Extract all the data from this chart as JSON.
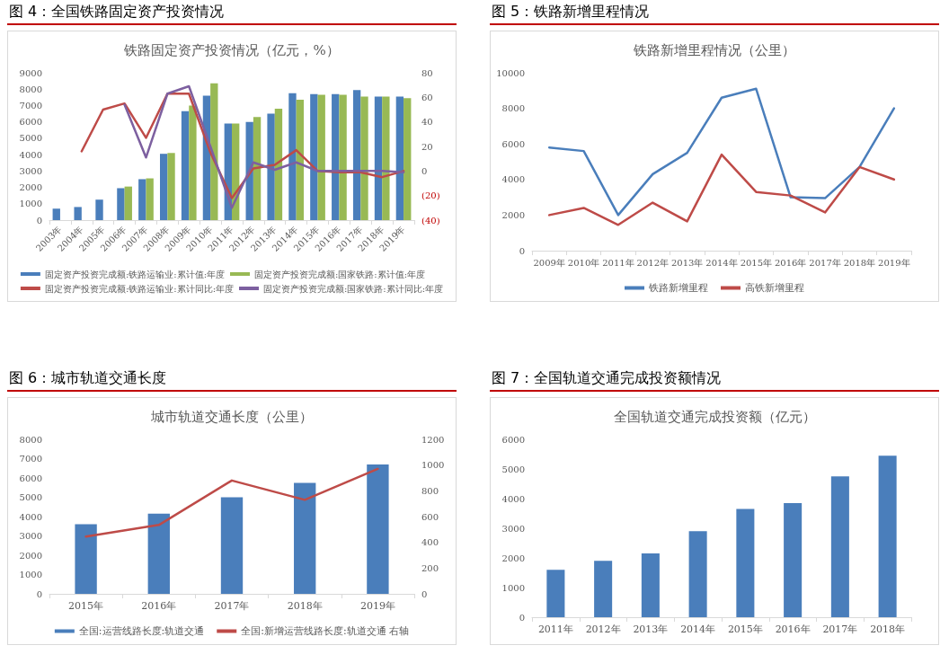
{
  "chart_data": [
    {
      "type": "bar",
      "title": "图 4：全国铁路固定资产投资情况",
      "subtitle": "铁路固定资产投资情况（亿元，%）",
      "categories": [
        "2003年",
        "2004年",
        "2005年",
        "2006年",
        "2007年",
        "2008年",
        "2009年",
        "2010年",
        "2011年",
        "2012年",
        "2013年",
        "2014年",
        "2015年",
        "2016年",
        "2017年",
        "2018年",
        "2019年"
      ],
      "series": [
        {
          "name": "固定资产投资完成额:铁路运输业:累计值:年度",
          "color": "#4a7ebb",
          "values": [
            700,
            800,
            1250,
            1950,
            2500,
            4050,
            6650,
            7600,
            5900,
            6000,
            6500,
            7750,
            7700,
            7700,
            7950,
            7550,
            7550
          ]
        },
        {
          "name": "固定资产投资完成额:国家铁路:累计值:年度",
          "color": "#98b954",
          "values": [
            null,
            null,
            null,
            2050,
            2550,
            4100,
            7000,
            8350,
            5900,
            6300,
            6800,
            7350,
            7650,
            7650,
            7550,
            7550,
            7450
          ]
        },
        {
          "name": "固定资产投资完成额:铁路运输业:累计同比:年度",
          "type": "line",
          "axis": "y2",
          "color": "#be4b48",
          "values": [
            null,
            16,
            50,
            55,
            27,
            63,
            63,
            15,
            -22,
            2,
            5,
            17,
            0,
            -1,
            -1,
            -5,
            0
          ]
        },
        {
          "name": "固定资产投资完成额:国家铁路:累计同比:年度",
          "type": "line",
          "axis": "y2",
          "color": "#7d60a0",
          "values": [
            null,
            null,
            null,
            54,
            11,
            63,
            69,
            20,
            -30,
            7,
            1,
            7,
            0,
            0,
            0,
            0,
            -1
          ]
        }
      ],
      "ylim": [
        0,
        9000
      ],
      "yticks": [
        0,
        1000,
        2000,
        3000,
        4000,
        5000,
        6000,
        7000,
        8000,
        9000
      ],
      "y2lim": [
        -40,
        80
      ],
      "y2ticks": [
        {
          "value": -40,
          "label": "(40)"
        },
        {
          "value": -20,
          "label": "(20)"
        },
        0,
        20,
        40,
        60,
        80
      ],
      "legend": "bottom",
      "marker": "none"
    },
    {
      "type": "line",
      "title": "图 5：铁路新增里程情况",
      "subtitle": "铁路新增里程情况（公里）",
      "categories": [
        "2009年",
        "2010年",
        "2011年",
        "2012年",
        "2013年",
        "2014年",
        "2015年",
        "2016年",
        "2017年",
        "2018年",
        "2019年"
      ],
      "series": [
        {
          "name": "铁路新增里程",
          "color": "#4a7ebb",
          "values": [
            5800,
            5600,
            2000,
            4300,
            5500,
            8600,
            9100,
            3000,
            2950,
            4700,
            8000
          ]
        },
        {
          "name": "高铁新增里程",
          "color": "#be4b48",
          "values": [
            2000,
            2400,
            1450,
            2700,
            1650,
            5400,
            3300,
            3100,
            2150,
            4700,
            4000
          ]
        }
      ],
      "ylim": [
        0,
        10000
      ],
      "yticks": [
        0,
        2000,
        4000,
        6000,
        8000,
        10000
      ],
      "legend": "bottom",
      "marker": "none"
    },
    {
      "type": "bar",
      "title": "图 6：城市轨道交通长度",
      "subtitle": "城市轨道交通长度（公里）",
      "categories": [
        "2015年",
        "2016年",
        "2017年",
        "2018年",
        "2019年"
      ],
      "series": [
        {
          "name": "全国:运营线路长度:轨道交通",
          "color": "#4a7ebb",
          "values": [
            3600,
            4150,
            5000,
            5750,
            6700
          ]
        },
        {
          "name": "全国:新增运营线路长度:轨道交通 右轴",
          "type": "line",
          "axis": "y2",
          "color": "#be4b48",
          "values": [
            445,
            535,
            880,
            730,
            970
          ]
        }
      ],
      "ylim": [
        0,
        8000
      ],
      "yticks": [
        0,
        1000,
        2000,
        3000,
        4000,
        5000,
        6000,
        7000,
        8000
      ],
      "y2lim": [
        0,
        1200
      ],
      "y2ticks": [
        0,
        200,
        400,
        600,
        800,
        1000,
        1200
      ],
      "legend": "bottom",
      "marker": "none"
    },
    {
      "type": "bar",
      "title": "图 7：全国轨道交通完成投资额情况",
      "subtitle": "全国轨道交通完成投资额（亿元）",
      "categories": [
        "2011年",
        "2012年",
        "2013年",
        "2014年",
        "2015年",
        "2016年",
        "2017年",
        "2018年"
      ],
      "series": [
        {
          "color": "#4a7ebb",
          "values": [
            1600,
            1900,
            2150,
            2900,
            3650,
            3850,
            4750,
            5450
          ]
        }
      ],
      "ylim": [
        0,
        6000
      ],
      "yticks": [
        0,
        1000,
        2000,
        3000,
        4000,
        5000,
        6000
      ]
    }
  ]
}
